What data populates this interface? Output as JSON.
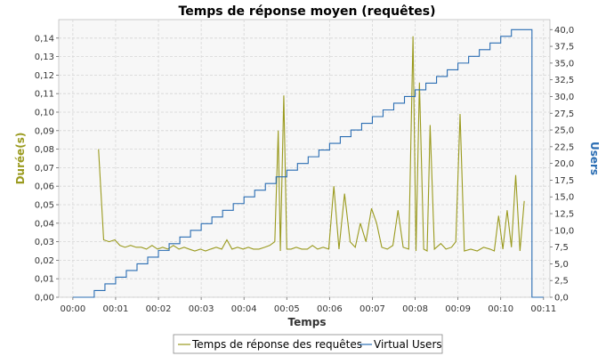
{
  "chart_data": {
    "type": "line",
    "title": "Temps de réponse moyen (requêtes)",
    "xlabel": "Temps",
    "x_unit": "minutes",
    "xlim": [
      -0.33,
      11.15
    ],
    "x_ticks": [
      0,
      1,
      2,
      3,
      4,
      5,
      6,
      7,
      8,
      9,
      10,
      11
    ],
    "x_tick_labels": [
      "00:00",
      "00:01",
      "00:02",
      "00:03",
      "00:04",
      "00:05",
      "00:06",
      "00:07",
      "00:08",
      "00:09",
      "00:10",
      "00:11"
    ],
    "left_axis": {
      "label": "Durée(s)",
      "color": "#9a9a1e",
      "ylim": [
        0,
        0.15
      ],
      "ticks": [
        "0,00",
        "0,01",
        "0,02",
        "0,03",
        "0,04",
        "0,05",
        "0,06",
        "0,07",
        "0,08",
        "0,09",
        "0,10",
        "0,11",
        "0,12",
        "0,13",
        "0,14"
      ]
    },
    "right_axis": {
      "label": "Users",
      "color": "#2a6db3",
      "ylim": [
        0,
        41.5
      ],
      "ticks": [
        "0,0",
        "2,5",
        "5,0",
        "7,5",
        "10,0",
        "12,5",
        "15,0",
        "17,5",
        "20,0",
        "22,5",
        "25,0",
        "27,5",
        "30,0",
        "32,5",
        "35,0",
        "37,5",
        "40,0"
      ]
    },
    "grid": true,
    "legend": "bottom-center",
    "series": [
      {
        "name": "Temps de réponse des requêtes",
        "axis": "left",
        "color": "#9a9a1e",
        "x": [
          0.6,
          0.72,
          0.85,
          0.98,
          1.1,
          1.22,
          1.35,
          1.48,
          1.6,
          1.72,
          1.85,
          1.98,
          2.1,
          2.22,
          2.35,
          2.48,
          2.6,
          2.72,
          2.85,
          2.98,
          3.1,
          3.22,
          3.35,
          3.48,
          3.6,
          3.72,
          3.85,
          3.98,
          4.1,
          4.22,
          4.35,
          4.48,
          4.6,
          4.72,
          4.8,
          4.85,
          4.93,
          5.0,
          5.1,
          5.22,
          5.35,
          5.48,
          5.6,
          5.72,
          5.85,
          5.98,
          6.1,
          6.22,
          6.35,
          6.48,
          6.6,
          6.72,
          6.85,
          6.98,
          7.1,
          7.22,
          7.35,
          7.48,
          7.6,
          7.72,
          7.85,
          7.95,
          8.02,
          8.1,
          8.2,
          8.28,
          8.35,
          8.45,
          8.6,
          8.72,
          8.85,
          8.95,
          9.05,
          9.15,
          9.3,
          9.45,
          9.6,
          9.75,
          9.85,
          9.95,
          10.05,
          10.15,
          10.25,
          10.35,
          10.45,
          10.55
        ],
        "y": [
          0.08,
          0.031,
          0.03,
          0.031,
          0.028,
          0.027,
          0.028,
          0.027,
          0.027,
          0.026,
          0.028,
          0.026,
          0.027,
          0.026,
          0.028,
          0.026,
          0.027,
          0.026,
          0.025,
          0.026,
          0.025,
          0.026,
          0.027,
          0.026,
          0.031,
          0.026,
          0.027,
          0.026,
          0.027,
          0.026,
          0.026,
          0.027,
          0.028,
          0.03,
          0.09,
          0.025,
          0.109,
          0.026,
          0.026,
          0.027,
          0.026,
          0.026,
          0.028,
          0.026,
          0.027,
          0.026,
          0.06,
          0.026,
          0.056,
          0.03,
          0.027,
          0.04,
          0.03,
          0.048,
          0.04,
          0.027,
          0.026,
          0.028,
          0.047,
          0.027,
          0.026,
          0.141,
          0.025,
          0.116,
          0.026,
          0.025,
          0.093,
          0.026,
          0.029,
          0.026,
          0.027,
          0.03,
          0.099,
          0.025,
          0.026,
          0.025,
          0.027,
          0.026,
          0.025,
          0.044,
          0.026,
          0.047,
          0.027,
          0.066,
          0.025,
          0.052
        ]
      },
      {
        "name": "Virtual Users",
        "axis": "right",
        "color": "#2a6db3",
        "type": "step",
        "x": [
          0,
          0.5,
          0.75,
          1.0,
          1.25,
          1.5,
          1.75,
          2.0,
          2.25,
          2.5,
          2.75,
          3.0,
          3.25,
          3.5,
          3.75,
          4.0,
          4.25,
          4.5,
          4.75,
          5.0,
          5.25,
          5.5,
          5.75,
          6.0,
          6.25,
          6.5,
          6.75,
          7.0,
          7.25,
          7.5,
          7.75,
          8.0,
          8.25,
          8.5,
          8.75,
          9.0,
          9.25,
          9.5,
          9.75,
          10.0,
          10.25,
          10.5,
          10.73,
          11.0
        ],
        "y": [
          0,
          1,
          2,
          3,
          4,
          5,
          6,
          7,
          8,
          9,
          10,
          11,
          12,
          13,
          14,
          15,
          16,
          17,
          18,
          19,
          20,
          21,
          22,
          23,
          24,
          25,
          26,
          27,
          28,
          29,
          30,
          31,
          32,
          33,
          34,
          35,
          36,
          37,
          38,
          39,
          40,
          40,
          0,
          0
        ]
      }
    ]
  }
}
